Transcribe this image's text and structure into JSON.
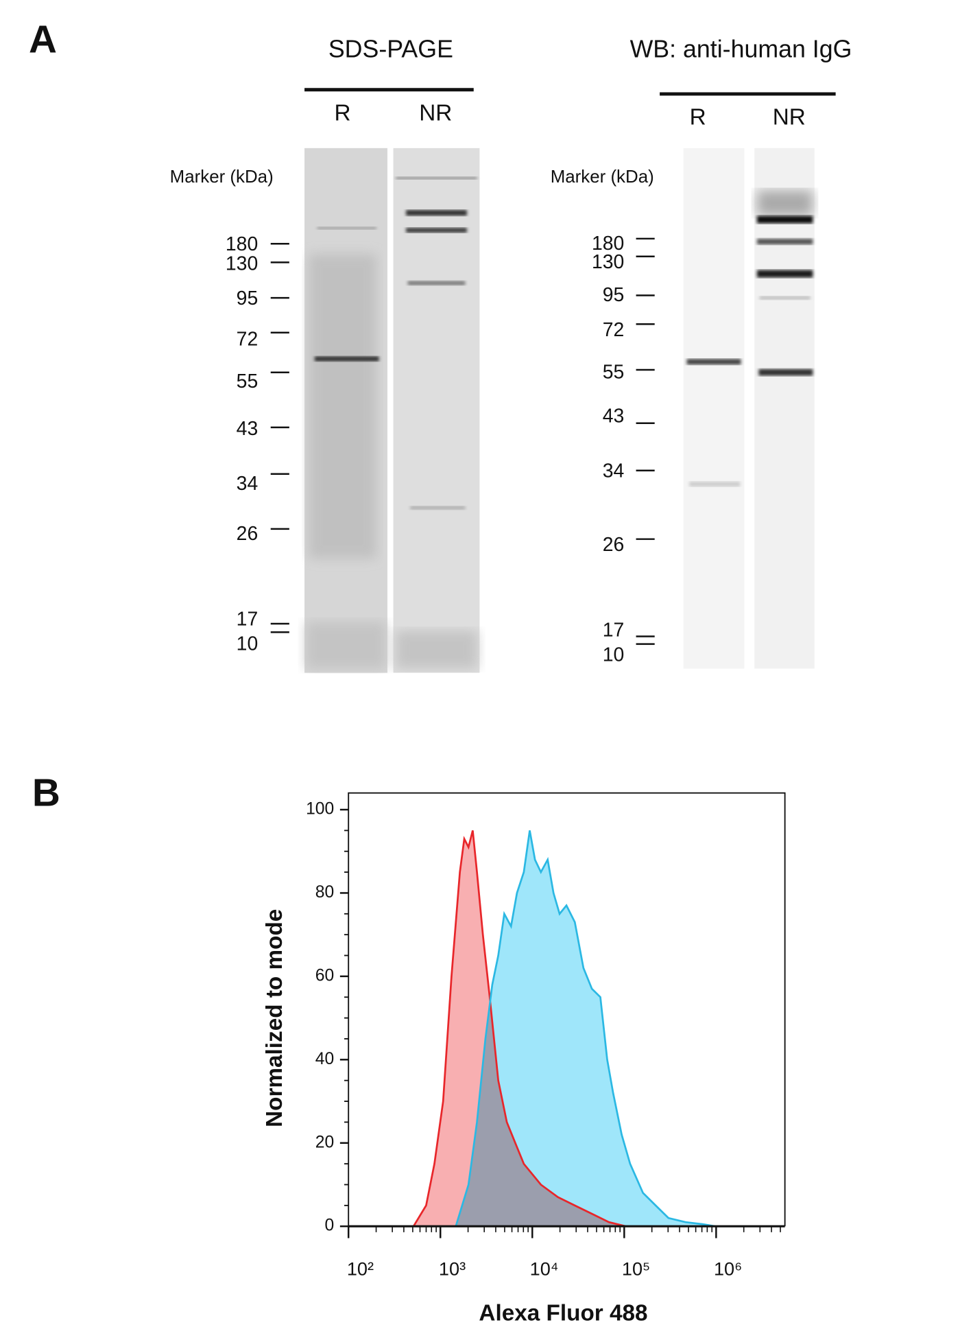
{
  "panel_a": {
    "label": "A",
    "gels": [
      {
        "title": "SDS-PAGE",
        "lanes": [
          "R",
          "NR"
        ],
        "marker_title": "Marker (kDa)",
        "markers": [
          180,
          130,
          95,
          72,
          55,
          43,
          34,
          26,
          17,
          10
        ]
      },
      {
        "title": "WB: anti-human  IgG",
        "lanes": [
          "R",
          "NR"
        ],
        "marker_title": "Marker (kDa)",
        "markers": [
          180,
          130,
          95,
          72,
          55,
          43,
          34,
          26,
          17,
          10
        ]
      }
    ]
  },
  "chart_data": {
    "type": "histogram",
    "label": "B",
    "x_label": "Alexa Fluor 488",
    "y_label": "Normalized to mode",
    "log_x": true,
    "xlim": [
      100,
      5600000
    ],
    "ylim": [
      0,
      104
    ],
    "xticks": [
      {
        "value": 100,
        "label": "10²"
      },
      {
        "value": 1000,
        "label": "10³"
      },
      {
        "value": 10000,
        "label": "10⁴"
      },
      {
        "value": 100000,
        "label": "10⁵"
      },
      {
        "value": 1000000,
        "label": "10⁶"
      }
    ],
    "yticks": [
      0,
      20,
      40,
      60,
      80,
      100
    ],
    "series": [
      {
        "color": "#e8262a",
        "fill": "#f7a1a3",
        "x": [
          510,
          700,
          860,
          1070,
          1320,
          1630,
          1820,
          2020,
          2250,
          2500,
          2900,
          3440,
          4260,
          5280,
          6530,
          8080,
          12400,
          19000,
          29000,
          44500,
          68100,
          104000
        ],
        "values": [
          0,
          5,
          15,
          30,
          60,
          85,
          93,
          91,
          95,
          85,
          70,
          55,
          35,
          25,
          20,
          15,
          10,
          7,
          5,
          3,
          1,
          0
        ]
      },
      {
        "color": "#2bb8e3",
        "fill": "#9fe6fa",
        "x": [
          1470,
          2020,
          2500,
          3090,
          3670,
          4260,
          4950,
          5870,
          6810,
          8080,
          9380,
          10700,
          12400,
          14700,
          17000,
          19800,
          23500,
          29000,
          36000,
          44500,
          55000,
          65300,
          75800,
          93800,
          116000,
          160000,
          220000,
          303000,
          464000,
          711000,
          980000
        ],
        "values": [
          0,
          10,
          25,
          45,
          58,
          65,
          75,
          72,
          80,
          85,
          95,
          88,
          85,
          88,
          80,
          75,
          77,
          73,
          62,
          57,
          55,
          40,
          32,
          22,
          15,
          8,
          5,
          2,
          1,
          0.5,
          0
        ]
      }
    ]
  }
}
